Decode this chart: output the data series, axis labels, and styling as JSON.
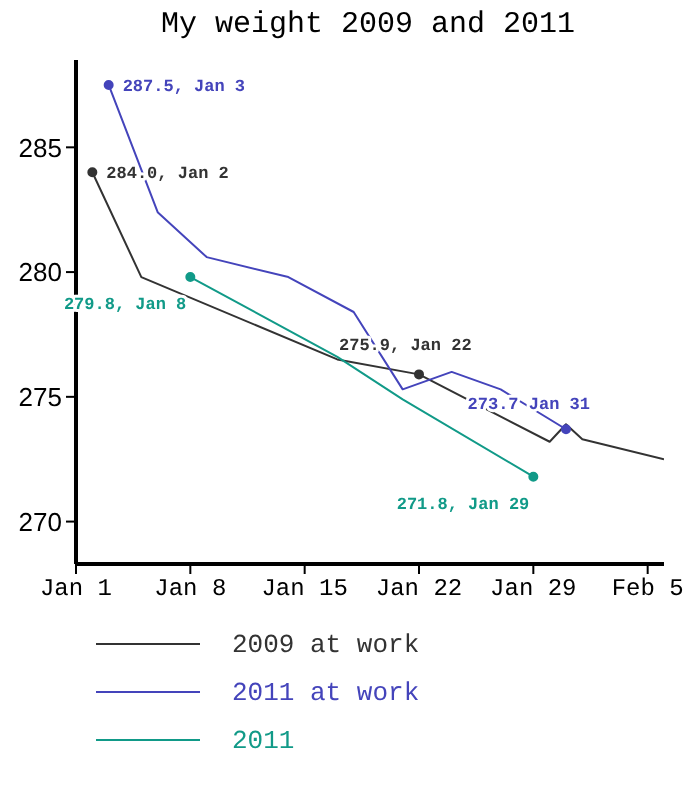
{
  "chart_data": {
    "type": "line",
    "title": "My weight 2009 and 2011",
    "xlim": [
      "--01-01",
      "--02-06"
    ],
    "xticks": [
      {
        "value": "--01-01",
        "label": "Jan 1"
      },
      {
        "value": "--01-08",
        "label": "Jan 8"
      },
      {
        "value": "--01-15",
        "label": "Jan 15"
      },
      {
        "value": "--01-22",
        "label": "Jan 22"
      },
      {
        "value": "--01-29",
        "label": "Jan 29"
      },
      {
        "value": "--02-05",
        "label": "Feb 5"
      }
    ],
    "ylim": [
      268.3,
      288.5
    ],
    "yticks": [
      270,
      275,
      280,
      285
    ],
    "grid": false,
    "legend": "bottom",
    "line_style": "solid",
    "series": [
      {
        "name": "2009 at work",
        "color": "#333333",
        "x": [
          "--01-02",
          "--01-05",
          "--01-17",
          "--01-22",
          "--01-30",
          "--01-31",
          "--02-01",
          "--02-06"
        ],
        "values": [
          284.0,
          279.8,
          276.5,
          275.9,
          273.2,
          273.9,
          273.3,
          272.5
        ]
      },
      {
        "name": "2011 at work",
        "color": "#4444bb",
        "x": [
          "--01-03",
          "--01-06",
          "--01-09",
          "--01-14",
          "--01-18",
          "--01-21",
          "--01-24",
          "--01-27",
          "--01-31"
        ],
        "values": [
          287.5,
          282.4,
          280.6,
          279.8,
          278.4,
          275.3,
          276.0,
          275.3,
          273.7
        ]
      },
      {
        "name": "2011",
        "color": "#119a88",
        "x": [
          "--01-08",
          "--01-17",
          "--01-21",
          "--01-29"
        ],
        "values": [
          279.8,
          276.6,
          274.9,
          271.8
        ]
      }
    ],
    "annotations": [
      {
        "text": "287.5, Jan 3",
        "x": "--01-03",
        "y": 287.5
      },
      {
        "text": "284.0, Jan 2",
        "x": "--01-02",
        "y": 284.0
      },
      {
        "text": "279.8, Jan 8",
        "x": "--01-08",
        "y": 279.8
      },
      {
        "text": "275.9, Jan 22",
        "x": "--01-22",
        "y": 275.9
      },
      {
        "text": "273.7 Jan 31",
        "x": "--01-31",
        "y": 273.7
      },
      {
        "text": "271.8, Jan 29",
        "x": "--01-29",
        "y": 271.8
      }
    ]
  }
}
